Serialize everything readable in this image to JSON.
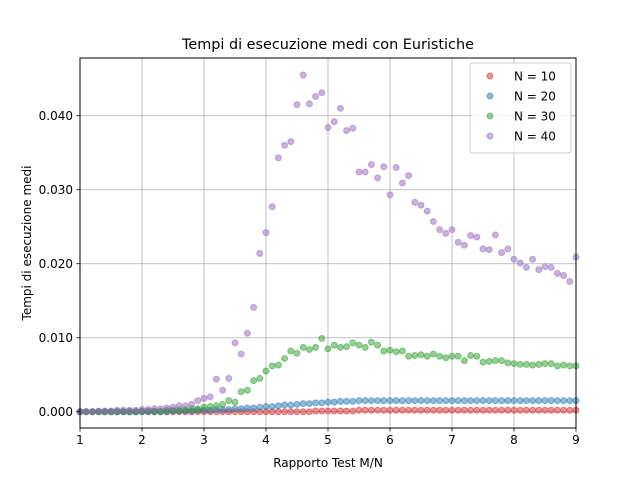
{
  "chart_data": {
    "type": "scatter",
    "title": "Tempi di esecuzione medi con Euristiche",
    "xlabel": "Rapporto Test M/N",
    "ylabel": "Tempi di esecuzione medi",
    "xlim": [
      1,
      9
    ],
    "ylim": [
      -0.0022,
      0.0478
    ],
    "x_ticks": [
      1,
      2,
      3,
      4,
      5,
      6,
      7,
      8,
      9
    ],
    "x_tick_labels": [
      "1",
      "2",
      "3",
      "4",
      "5",
      "6",
      "7",
      "8",
      "9"
    ],
    "y_ticks": [
      0,
      0.01,
      0.02,
      0.03,
      0.04
    ],
    "y_tick_labels": [
      "0.000",
      "0.010",
      "0.020",
      "0.030",
      "0.040"
    ],
    "grid": true,
    "legend_position": "top-right",
    "x": [
      1.0,
      1.1,
      1.2,
      1.3,
      1.4,
      1.5,
      1.6,
      1.7,
      1.8,
      1.9,
      2.0,
      2.1,
      2.2,
      2.3,
      2.4,
      2.5,
      2.6,
      2.7,
      2.8,
      2.9,
      3.0,
      3.1,
      3.2,
      3.3,
      3.4,
      3.5,
      3.6,
      3.7,
      3.8,
      3.9,
      4.0,
      4.1,
      4.2,
      4.3,
      4.4,
      4.5,
      4.6,
      4.7,
      4.8,
      4.9,
      5.0,
      5.1,
      5.2,
      5.3,
      5.4,
      5.5,
      5.6,
      5.7,
      5.8,
      5.9,
      6.0,
      6.1,
      6.2,
      6.3,
      6.4,
      6.5,
      6.6,
      6.7,
      6.8,
      6.9,
      7.0,
      7.1,
      7.2,
      7.3,
      7.4,
      7.5,
      7.6,
      7.7,
      7.8,
      7.9,
      8.0,
      8.1,
      8.2,
      8.3,
      8.4,
      8.5,
      8.6,
      8.7,
      8.8,
      8.9,
      9.0
    ],
    "series": [
      {
        "name": "N = 10",
        "color": "#d62728",
        "values": [
          0.0,
          0.0,
          0.0,
          0.0,
          0.0,
          0.0,
          0.0,
          0.0,
          0.0,
          0.0,
          0.0,
          0.0,
          0.0,
          0.0,
          0.0,
          0.0,
          0.0,
          0.0,
          0.0,
          0.0,
          0.0,
          0.0,
          0.0,
          0.0,
          0.0,
          0.0,
          0.0,
          0.0,
          0.0,
          0.0,
          0.0,
          0.0,
          0.0,
          0.0,
          0.0,
          0.0,
          0.0,
          0.0,
          0.0001,
          0.0001,
          0.0001,
          0.0001,
          0.0001,
          0.0001,
          0.0001,
          0.0002,
          0.0002,
          0.0002,
          0.0002,
          0.0002,
          0.0002,
          0.0002,
          0.0002,
          0.0002,
          0.0002,
          0.0002,
          0.0002,
          0.0002,
          0.0002,
          0.0002,
          0.0002,
          0.0002,
          0.0002,
          0.0002,
          0.0002,
          0.0002,
          0.0002,
          0.0002,
          0.0002,
          0.0002,
          0.0002,
          0.0002,
          0.0002,
          0.0002,
          0.0002,
          0.0002,
          0.0002,
          0.0002,
          0.0002,
          0.0002,
          0.0002
        ]
      },
      {
        "name": "N = 20",
        "color": "#1f77b4",
        "values": [
          0.0,
          0.0,
          0.0,
          0.0,
          0.0,
          0.0,
          0.0,
          0.0,
          0.0,
          0.0,
          0.0,
          0.0,
          0.0,
          0.0,
          0.0,
          0.0001,
          0.0001,
          0.0001,
          0.0001,
          0.0002,
          0.0002,
          0.0002,
          0.0003,
          0.0003,
          0.0003,
          0.0004,
          0.0004,
          0.0005,
          0.0005,
          0.0006,
          0.0007,
          0.0007,
          0.0008,
          0.0009,
          0.0009,
          0.001,
          0.0011,
          0.0011,
          0.0012,
          0.0012,
          0.0013,
          0.0013,
          0.0014,
          0.0014,
          0.0014,
          0.0015,
          0.0015,
          0.0015,
          0.0015,
          0.0015,
          0.0015,
          0.0015,
          0.0015,
          0.0015,
          0.0015,
          0.0015,
          0.0015,
          0.0015,
          0.0015,
          0.0015,
          0.0015,
          0.0015,
          0.0015,
          0.0015,
          0.0015,
          0.0015,
          0.0015,
          0.0015,
          0.0015,
          0.0015,
          0.0015,
          0.0015,
          0.0015,
          0.0015,
          0.0015,
          0.0015,
          0.0015,
          0.0015,
          0.0015,
          0.0015,
          0.0015
        ]
      },
      {
        "name": "N = 30",
        "color": "#2ca02c",
        "values": [
          0.0,
          0.0,
          0.0,
          0.0,
          0.0,
          0.0,
          0.0,
          0.0,
          0.0,
          0.0,
          0.0001,
          0.0001,
          0.0001,
          0.0001,
          0.0002,
          0.0002,
          0.0003,
          0.0003,
          0.0004,
          0.0004,
          0.0006,
          0.0007,
          0.0008,
          0.001,
          0.0015,
          0.0013,
          0.0027,
          0.0029,
          0.0042,
          0.0045,
          0.0055,
          0.0062,
          0.0063,
          0.0072,
          0.0082,
          0.0079,
          0.0087,
          0.0084,
          0.0087,
          0.0099,
          0.0085,
          0.009,
          0.0087,
          0.0088,
          0.0093,
          0.009,
          0.0087,
          0.0094,
          0.009,
          0.0082,
          0.0083,
          0.0081,
          0.0082,
          0.0075,
          0.0076,
          0.0077,
          0.0075,
          0.0078,
          0.0075,
          0.0073,
          0.0075,
          0.0075,
          0.0069,
          0.0076,
          0.0075,
          0.0067,
          0.0068,
          0.0069,
          0.0069,
          0.0066,
          0.0065,
          0.0064,
          0.0064,
          0.0063,
          0.0064,
          0.0065,
          0.0065,
          0.0062,
          0.0063,
          0.0062,
          0.0062
        ]
      },
      {
        "name": "N = 40",
        "color": "#9467bd",
        "values": [
          0.0,
          0.0,
          0.0,
          0.0001,
          0.0001,
          0.0001,
          0.0002,
          0.0002,
          0.0002,
          0.0002,
          0.0003,
          0.0003,
          0.0004,
          0.0004,
          0.0005,
          0.0006,
          0.0008,
          0.0008,
          0.001,
          0.0015,
          0.0018,
          0.002,
          0.0044,
          0.0029,
          0.0045,
          0.0093,
          0.0078,
          0.0106,
          0.0141,
          0.0214,
          0.0242,
          0.0277,
          0.0343,
          0.036,
          0.0365,
          0.0415,
          0.0455,
          0.0416,
          0.0426,
          0.0431,
          0.0384,
          0.0392,
          0.041,
          0.038,
          0.0383,
          0.0324,
          0.0324,
          0.0334,
          0.0316,
          0.0331,
          0.0293,
          0.033,
          0.0309,
          0.0319,
          0.0283,
          0.0279,
          0.0271,
          0.0257,
          0.0246,
          0.0241,
          0.0246,
          0.0229,
          0.0225,
          0.0238,
          0.0236,
          0.022,
          0.0219,
          0.0239,
          0.0215,
          0.022,
          0.0206,
          0.0201,
          0.0195,
          0.0206,
          0.0192,
          0.0196,
          0.0195,
          0.0187,
          0.0184,
          0.0176,
          0.0209
        ]
      }
    ]
  }
}
